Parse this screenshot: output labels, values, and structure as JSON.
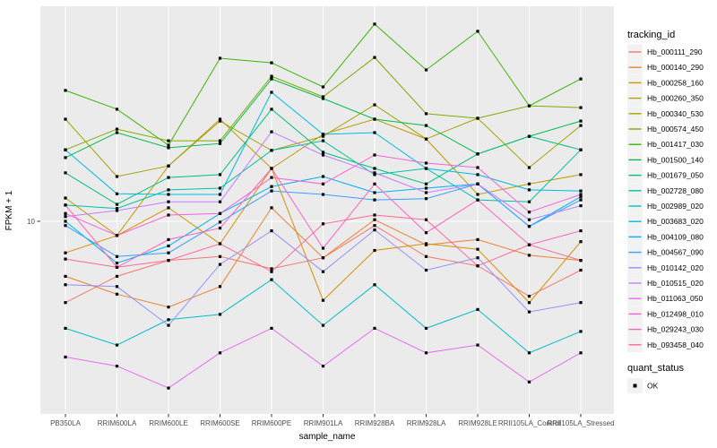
{
  "chart_data": {
    "type": "line",
    "title": "",
    "xlabel": "sample_name",
    "ylabel": "FPKM + 1",
    "y_scale": "log10",
    "y_ticks": [
      10
    ],
    "ylim": [
      1.05,
      150
    ],
    "grid": true,
    "panel_bg": "#EBEBEB",
    "grid_color": "#FFFFFF",
    "marker": "black-square",
    "legend_position": "right",
    "categories": [
      "PB350LA",
      "RRIM600LA",
      "RRIM600LE",
      "RRIM600SE",
      "RRIM600PE",
      "RRIM901LA",
      "RRIM928BA",
      "RRIM928LA",
      "RRIM928LE",
      "RRII105LA_Control",
      "RRII105LA_Stressed"
    ],
    "legend": {
      "title": "tracking_id"
    },
    "quant_legend": {
      "title": "quant_status",
      "items": [
        "OK"
      ]
    },
    "series": [
      {
        "name": "Hb_000111_290",
        "color": "#F8766D",
        "values": [
          3.7,
          5.1,
          6.2,
          6.5,
          5.6,
          6.4,
          9.5,
          6.5,
          5.8,
          4.0,
          5.5
        ]
      },
      {
        "name": "Hb_000140_290",
        "color": "#EA8331",
        "values": [
          5.1,
          4.1,
          3.5,
          4.5,
          11.8,
          6.4,
          10.2,
          7.5,
          8.0,
          6.6,
          6.2
        ]
      },
      {
        "name": "Hb_000258_160",
        "color": "#D89000",
        "values": [
          6.8,
          8.4,
          11.8,
          7.6,
          19.1,
          3.8,
          7.0,
          7.6,
          7.1,
          3.7,
          7.8
        ]
      },
      {
        "name": "Hb_000260_350",
        "color": "#C09B00",
        "values": [
          13.3,
          8.4,
          19.7,
          34.9,
          19.1,
          29.0,
          34.9,
          27.4,
          13.9,
          15.8,
          17.7
        ]
      },
      {
        "name": "Hb_000340_530",
        "color": "#A3A500",
        "values": [
          34.9,
          17.3,
          19.7,
          34.1,
          23.8,
          28.3,
          41.6,
          27.4,
          35.3,
          19.3,
          32.3
        ]
      },
      {
        "name": "Hb_000574_450",
        "color": "#7CAE00",
        "values": [
          24.0,
          30.9,
          26.8,
          26.8,
          59.0,
          45.9,
          74.3,
          37.3,
          35.3,
          41.1,
          40.2
        ]
      },
      {
        "name": "Hb_001417_030",
        "color": "#39B600",
        "values": [
          49.6,
          39.4,
          25.4,
          73.6,
          69.6,
          51.8,
          111.7,
          63.8,
          102.3,
          41.1,
          57.1
        ]
      },
      {
        "name": "Hb_001500_140",
        "color": "#00BB4E",
        "values": [
          21.8,
          29.6,
          24.6,
          25.9,
          57.1,
          44.9,
          34.9,
          32.3,
          22.8,
          28.3,
          34.1
        ]
      },
      {
        "name": "Hb_001679_050",
        "color": "#00BF7D",
        "values": [
          18.1,
          12.3,
          17.1,
          17.7,
          39.4,
          23.3,
          19.1,
          15.8,
          22.8,
          28.3,
          24.0
        ]
      },
      {
        "name": "Hb_002728_080",
        "color": "#00C1A3",
        "values": [
          12.2,
          11.7,
          14.7,
          15.0,
          23.8,
          26.8,
          17.7,
          19.1,
          13.0,
          12.7,
          24.0
        ]
      },
      {
        "name": "Hb_002989_020",
        "color": "#00BFC4",
        "values": [
          2.7,
          2.2,
          3.0,
          3.2,
          4.9,
          2.8,
          4.6,
          2.7,
          3.4,
          2.0,
          2.6
        ]
      },
      {
        "name": "Hb_003683_020",
        "color": "#00BAE0",
        "values": [
          24.0,
          14.0,
          13.9,
          13.9,
          48.5,
          29.0,
          29.6,
          19.1,
          17.7,
          14.7,
          14.5
        ]
      },
      {
        "name": "Hb_004109_080",
        "color": "#00B0F6",
        "values": [
          10.0,
          6.0,
          7.4,
          11.0,
          15.3,
          17.3,
          14.2,
          15.0,
          15.8,
          9.4,
          13.5
        ]
      },
      {
        "name": "Hb_004567_090",
        "color": "#35A2FF",
        "values": [
          9.5,
          6.5,
          6.8,
          9.9,
          14.5,
          13.9,
          13.0,
          13.2,
          15.8,
          9.4,
          13.0
        ]
      },
      {
        "name": "Hb_010142_020",
        "color": "#9590FF",
        "values": [
          4.6,
          4.5,
          2.8,
          5.9,
          8.9,
          5.4,
          9.0,
          5.5,
          6.4,
          3.3,
          3.7
        ]
      },
      {
        "name": "Hb_010515_020",
        "color": "#C77CFF",
        "values": [
          10.6,
          11.4,
          12.7,
          12.7,
          29.9,
          22.5,
          18.1,
          14.2,
          15.8,
          10.2,
          12.1
        ]
      },
      {
        "name": "Hb_011063_050",
        "color": "#E76BF3",
        "values": [
          1.9,
          1.7,
          1.3,
          2.0,
          2.7,
          1.7,
          2.7,
          2.0,
          2.2,
          1.4,
          2.0
        ]
      },
      {
        "name": "Hb_012498_010",
        "color": "#FA62DB",
        "values": [
          11.0,
          8.4,
          10.8,
          11.0,
          17.1,
          15.8,
          22.5,
          20.4,
          19.3,
          11.2,
          13.9
        ]
      },
      {
        "name": "Hb_029243_030",
        "color": "#FF62BC",
        "values": [
          12.2,
          5.7,
          8.0,
          9.2,
          19.1,
          7.2,
          15.8,
          8.7,
          13.0,
          7.5,
          8.9
        ]
      },
      {
        "name": "Hb_093458_040",
        "color": "#FF6A98",
        "values": [
          6.3,
          5.7,
          6.2,
          7.6,
          5.4,
          9.7,
          10.8,
          10.2,
          5.8,
          7.5,
          6.2
        ]
      }
    ]
  }
}
